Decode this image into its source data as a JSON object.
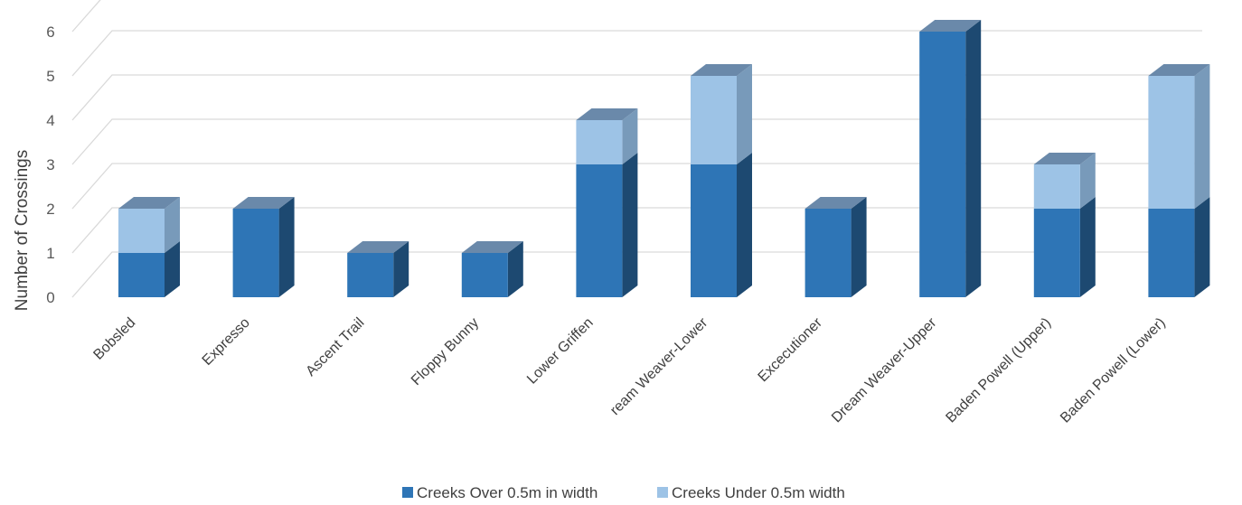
{
  "chart_data": {
    "type": "bar",
    "stacked": true,
    "three_d": true,
    "title": "",
    "xlabel": "",
    "ylabel": "Number of Crossings",
    "ylim": [
      0,
      6
    ],
    "yticks": [
      0,
      1,
      2,
      3,
      4,
      5,
      6
    ],
    "grid": true,
    "legend_position": "bottom",
    "categories": [
      "Bobsled",
      "Expresso",
      "Ascent Trail",
      "Floppy Bunny",
      "Lower Griffen",
      "ream Weaver-Lower",
      "Excecutioner",
      "Dream Weaver-Upper",
      "Baden Powell (Upper)",
      "Baden Powell (Lower)"
    ],
    "series": [
      {
        "name": "Creeks Over 0.5m in width",
        "color": "#2e75b6",
        "values": [
          1,
          2,
          1,
          1,
          3,
          3,
          2,
          6,
          2,
          2
        ]
      },
      {
        "name": "Creeks Under 0.5m width",
        "color": "#9dc3e6",
        "values": [
          1,
          0,
          0,
          0,
          1,
          2,
          0,
          0,
          1,
          3
        ]
      }
    ]
  }
}
